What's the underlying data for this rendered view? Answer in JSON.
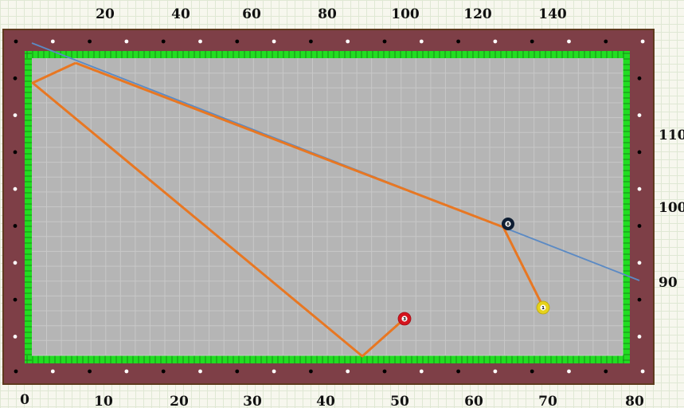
{
  "top_axis_labels": [
    "20",
    "40",
    "60",
    "80",
    "100",
    "120",
    "140"
  ],
  "bottom_axis_labels": [
    "0",
    "10",
    "20",
    "30",
    "40",
    "50",
    "60",
    "70",
    "80"
  ],
  "right_axis_labels": [
    "110",
    "100",
    "90"
  ],
  "balls": [
    {
      "id": "ball-black",
      "number": "8",
      "color": "#0f1e33"
    },
    {
      "id": "ball-yellow",
      "number": "1",
      "color": "#e6d21a"
    },
    {
      "id": "ball-red",
      "number": "3",
      "color": "#d4141e"
    }
  ],
  "colors": {
    "rail": "#7e3f47",
    "cushion": "#22dd22",
    "felt": "#b5b5b5",
    "shot_path": "#e87722",
    "aim_line": "#5b8ac4"
  }
}
